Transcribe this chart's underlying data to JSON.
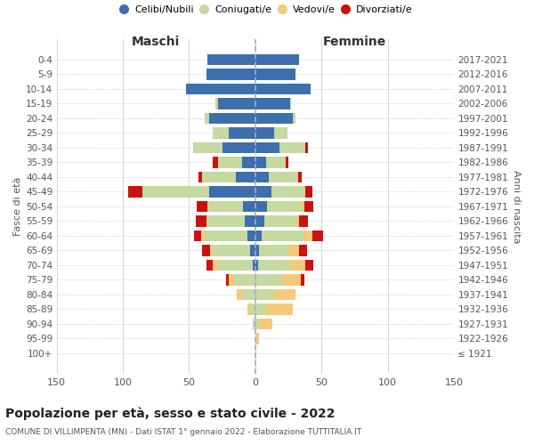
{
  "age_groups": [
    "100+",
    "95-99",
    "90-94",
    "85-89",
    "80-84",
    "75-79",
    "70-74",
    "65-69",
    "60-64",
    "55-59",
    "50-54",
    "45-49",
    "40-44",
    "35-39",
    "30-34",
    "25-29",
    "20-24",
    "15-19",
    "10-14",
    "5-9",
    "0-4"
  ],
  "birth_years": [
    "≤ 1921",
    "1922-1926",
    "1927-1931",
    "1932-1936",
    "1937-1941",
    "1942-1946",
    "1947-1951",
    "1952-1956",
    "1957-1961",
    "1962-1966",
    "1967-1971",
    "1972-1976",
    "1977-1981",
    "1982-1986",
    "1987-1991",
    "1992-1996",
    "1997-2001",
    "2002-2006",
    "2007-2011",
    "2012-2016",
    "2017-2021"
  ],
  "males": {
    "celibi": [
      0,
      0,
      0,
      0,
      0,
      0,
      2,
      4,
      6,
      8,
      9,
      35,
      15,
      10,
      25,
      20,
      35,
      28,
      52,
      37,
      36
    ],
    "coniugati": [
      0,
      0,
      2,
      4,
      10,
      16,
      26,
      28,
      32,
      28,
      26,
      50,
      25,
      18,
      22,
      12,
      3,
      2,
      0,
      0,
      0
    ],
    "vedovi": [
      0,
      0,
      0,
      2,
      4,
      4,
      4,
      2,
      3,
      1,
      1,
      0,
      0,
      0,
      0,
      0,
      0,
      0,
      0,
      0,
      0
    ],
    "divorziati": [
      0,
      0,
      0,
      0,
      0,
      2,
      5,
      6,
      5,
      8,
      8,
      11,
      3,
      4,
      0,
      0,
      0,
      0,
      0,
      0,
      0
    ]
  },
  "females": {
    "nubili": [
      0,
      0,
      0,
      0,
      0,
      0,
      2,
      3,
      5,
      7,
      9,
      12,
      10,
      8,
      18,
      14,
      28,
      26,
      42,
      30,
      33
    ],
    "coniugate": [
      0,
      1,
      3,
      8,
      14,
      20,
      24,
      22,
      32,
      24,
      26,
      26,
      22,
      15,
      20,
      10,
      2,
      1,
      0,
      0,
      0
    ],
    "vedove": [
      1,
      2,
      10,
      20,
      16,
      14,
      12,
      8,
      6,
      2,
      2,
      0,
      0,
      0,
      0,
      0,
      0,
      0,
      0,
      0,
      0
    ],
    "divorziate": [
      0,
      0,
      0,
      0,
      0,
      3,
      6,
      6,
      8,
      7,
      7,
      5,
      3,
      2,
      2,
      0,
      0,
      0,
      0,
      0,
      0
    ]
  },
  "colors": {
    "celibi": "#3d6fad",
    "coniugati": "#c5d9a0",
    "vedovi": "#f5c97a",
    "divorziati": "#cc1111"
  },
  "title": "Popolazione per età, sesso e stato civile - 2022",
  "subtitle": "COMUNE DI VILLIMPENTA (MN) - Dati ISTAT 1° gennaio 2022 - Elaborazione TUTTITALIA.IT",
  "ylabel_left": "Fasce di età",
  "ylabel_right": "Anni di nascita",
  "xlabel_left": "Maschi",
  "xlabel_right": "Femmine",
  "xlim": 150,
  "background_color": "#ffffff",
  "grid_color": "#cccccc"
}
